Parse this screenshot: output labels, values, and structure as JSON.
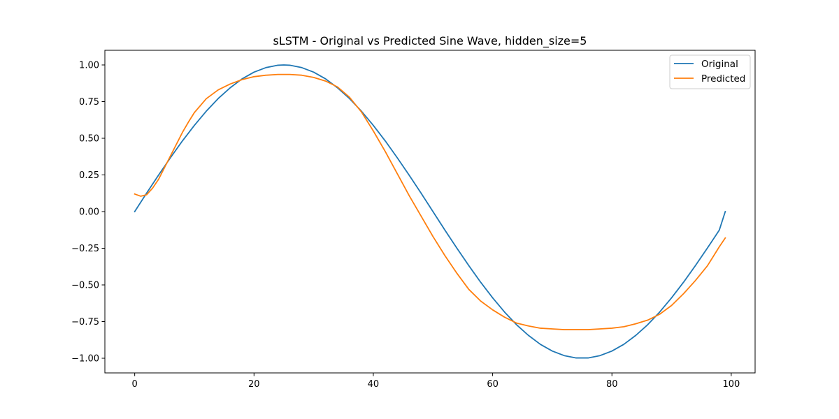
{
  "chart_data": {
    "type": "line",
    "title": "sLSTM - Original vs Predicted Sine Wave, hidden_size=5",
    "xlabel": "",
    "ylabel": "",
    "xlim": [
      -5,
      104
    ],
    "ylim": [
      -1.1,
      1.1
    ],
    "grid": false,
    "legend_position": "top-right",
    "x_ticks": [
      0,
      20,
      40,
      60,
      80,
      100
    ],
    "x_tick_labels": [
      "0",
      "20",
      "40",
      "60",
      "80",
      "100"
    ],
    "y_ticks": [
      1.0,
      0.75,
      0.5,
      0.25,
      0.0,
      -0.25,
      -0.5,
      -0.75,
      -1.0
    ],
    "y_tick_labels": [
      "1.00",
      "0.75",
      "0.50",
      "0.25",
      "0.00",
      "−0.25",
      "−0.50",
      "−0.75",
      "−1.00"
    ],
    "series": [
      {
        "name": "Original",
        "color": "#1f77b4",
        "x": [
          0,
          2,
          4,
          6,
          8,
          10,
          12,
          14,
          16,
          18,
          20,
          22,
          24,
          25,
          26,
          28,
          30,
          32,
          34,
          36,
          38,
          40,
          42,
          44,
          46,
          48,
          50,
          52,
          54,
          56,
          58,
          60,
          62,
          64,
          66,
          68,
          70,
          72,
          74,
          76,
          78,
          80,
          82,
          84,
          86,
          88,
          90,
          92,
          94,
          96,
          98,
          99
        ],
        "y": [
          0.0,
          0.126,
          0.249,
          0.368,
          0.482,
          0.588,
          0.685,
          0.771,
          0.844,
          0.905,
          0.951,
          0.982,
          0.998,
          1.0,
          0.998,
          0.982,
          0.951,
          0.905,
          0.844,
          0.771,
          0.685,
          0.588,
          0.482,
          0.368,
          0.249,
          0.126,
          0.0,
          -0.126,
          -0.249,
          -0.368,
          -0.482,
          -0.588,
          -0.685,
          -0.771,
          -0.844,
          -0.905,
          -0.951,
          -0.982,
          -0.998,
          -0.998,
          -0.982,
          -0.951,
          -0.905,
          -0.844,
          -0.771,
          -0.685,
          -0.588,
          -0.482,
          -0.368,
          -0.249,
          -0.126,
          0.0
        ]
      },
      {
        "name": "Predicted",
        "color": "#ff7f0e",
        "x": [
          0,
          1,
          2,
          3,
          4,
          5,
          6,
          7,
          8,
          9,
          10,
          12,
          14,
          16,
          18,
          20,
          22,
          24,
          26,
          28,
          30,
          32,
          34,
          36,
          38,
          40,
          42,
          44,
          46,
          48,
          50,
          52,
          54,
          56,
          58,
          60,
          62,
          64,
          66,
          68,
          70,
          72,
          74,
          76,
          78,
          80,
          82,
          84,
          86,
          88,
          90,
          92,
          94,
          96,
          98,
          99
        ],
        "y": [
          0.12,
          0.105,
          0.115,
          0.16,
          0.22,
          0.3,
          0.38,
          0.46,
          0.54,
          0.61,
          0.675,
          0.77,
          0.83,
          0.87,
          0.9,
          0.92,
          0.93,
          0.935,
          0.935,
          0.93,
          0.915,
          0.89,
          0.85,
          0.78,
          0.68,
          0.55,
          0.41,
          0.26,
          0.11,
          -0.03,
          -0.17,
          -0.3,
          -0.42,
          -0.53,
          -0.61,
          -0.67,
          -0.72,
          -0.76,
          -0.78,
          -0.795,
          -0.8,
          -0.805,
          -0.805,
          -0.805,
          -0.8,
          -0.795,
          -0.785,
          -0.765,
          -0.74,
          -0.7,
          -0.64,
          -0.56,
          -0.47,
          -0.37,
          -0.24,
          -0.18
        ]
      }
    ]
  }
}
